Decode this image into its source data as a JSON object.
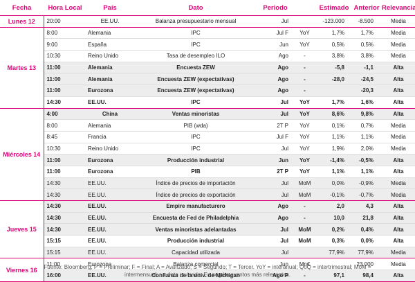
{
  "headers": {
    "fecha": "Fecha",
    "hora": "Hora Local",
    "pais": "País",
    "dato": "Dato",
    "periodo": "Periodo",
    "estimado": "Estimado",
    "anterior": "Anterior",
    "relevancia": "Relevancia"
  },
  "days": [
    {
      "label": "Lunes 12",
      "rows": [
        {
          "hora": "20:00",
          "pais": "EE.UU.",
          "dato": "Balanza presupuestario mensual",
          "periodo": "Jul",
          "unidad": "",
          "estimado": "-123.000",
          "anterior": "-8.500",
          "relevancia": "Media",
          "bold": false,
          "shade": false,
          "center_pais": true
        }
      ]
    },
    {
      "label": "Martes 13",
      "rows": [
        {
          "hora": "8:00",
          "pais": "Alemania",
          "dato": "IPC",
          "periodo": "Jul F",
          "unidad": "YoY",
          "estimado": "1,7%",
          "anterior": "1,7%",
          "relevancia": "Media",
          "bold": false,
          "shade": false
        },
        {
          "hora": "9:00",
          "pais": "España",
          "dato": "IPC",
          "periodo": "Jun",
          "unidad": "YoY",
          "estimado": "0,5%",
          "anterior": "0,5%",
          "relevancia": "Media",
          "bold": false,
          "shade": false
        },
        {
          "hora": "10:30",
          "pais": "Reino Unido",
          "dato": "Tasa de desempleo ILO",
          "periodo": "Ago",
          "unidad": "-",
          "estimado": "3,8%",
          "anterior": "3,8%",
          "relevancia": "Media",
          "bold": false,
          "shade": false
        },
        {
          "hora": "11:00",
          "pais": "Alemania",
          "dato": "Encuesta ZEW",
          "periodo": "Ago",
          "unidad": "-",
          "estimado": "-5,8",
          "anterior": "-1,1",
          "relevancia": "Alta",
          "bold": true,
          "shade": true
        },
        {
          "hora": "11:00",
          "pais": "Alemania",
          "dato": "Encuesta ZEW  (expectativas)",
          "periodo": "Ago",
          "unidad": "-",
          "estimado": "-28,0",
          "anterior": "-24,5",
          "relevancia": "Alta",
          "bold": true,
          "shade": true
        },
        {
          "hora": "11:00",
          "pais": "Eurozona",
          "dato": "Encuesta ZEW  (expectativas)",
          "periodo": "Ago",
          "unidad": "-",
          "estimado": "",
          "anterior": "-20,3",
          "relevancia": "Alta",
          "bold": true,
          "shade": true
        },
        {
          "hora": "14:30",
          "pais": "EE.UU.",
          "dato": "IPC",
          "periodo": "Jul",
          "unidad": "YoY",
          "estimado": "1,7%",
          "anterior": "1,6%",
          "relevancia": "Alta",
          "bold": true,
          "shade": false
        }
      ]
    },
    {
      "label": "Miércoles 14",
      "rows": [
        {
          "hora": "4:00",
          "pais": "China",
          "dato": "Ventas minoristas",
          "periodo": "Jul",
          "unidad": "YoY",
          "estimado": "8,6%",
          "anterior": "9,8%",
          "relevancia": "Alta",
          "bold": true,
          "shade": true,
          "center_pais": true
        },
        {
          "hora": "8:00",
          "pais": "Alemania",
          "dato": "PIB (wda)",
          "periodo": "2T P",
          "unidad": "YoY",
          "estimado": "0,1%",
          "anterior": "0,7%",
          "relevancia": "Media",
          "bold": false,
          "shade": false
        },
        {
          "hora": "8:45",
          "pais": "Francia",
          "dato": "IPC",
          "periodo": "Jul F",
          "unidad": "YoY",
          "estimado": "1,1%",
          "anterior": "1,1%",
          "relevancia": "Media",
          "bold": false,
          "shade": false
        },
        {
          "hora": "10:30",
          "pais": "Reino Unido",
          "dato": "IPC",
          "periodo": "Jul",
          "unidad": "YoY",
          "estimado": "1,9%",
          "anterior": "2,0%",
          "relevancia": "Media",
          "bold": false,
          "shade": false
        },
        {
          "hora": "11:00",
          "pais": "Eurozona",
          "dato": "Producción industrial",
          "periodo": "Jun",
          "unidad": "YoY",
          "estimado": "-1,4%",
          "anterior": "-0,5%",
          "relevancia": "Alta",
          "bold": true,
          "shade": true
        },
        {
          "hora": "11:00",
          "pais": "Eurozona",
          "dato": "PIB",
          "periodo": "2T P",
          "unidad": "YoY",
          "estimado": "1,1%",
          "anterior": "1,1%",
          "relevancia": "Alta",
          "bold": true,
          "shade": false
        },
        {
          "hora": "14:30",
          "pais": "EE.UU.",
          "dato": "Índice de precios de importación",
          "periodo": "Jul",
          "unidad": "MoM",
          "estimado": "0,0%",
          "anterior": "-0,9%",
          "relevancia": "Media",
          "bold": false,
          "shade": true
        },
        {
          "hora": "14:30",
          "pais": "EE.UU.",
          "dato": "Índice de precios de exportación",
          "periodo": "Jul",
          "unidad": "MoM",
          "estimado": "-0,1%",
          "anterior": "-0,7%",
          "relevancia": "Media",
          "bold": false,
          "shade": true
        }
      ]
    },
    {
      "label": "Jueves 15",
      "rows": [
        {
          "hora": "14:30",
          "pais": "EE.UU.",
          "dato": "Empire manufacturero",
          "periodo": "Ago",
          "unidad": "-",
          "estimado": "2,0",
          "anterior": "4,3",
          "relevancia": "Alta",
          "bold": true,
          "shade": true
        },
        {
          "hora": "14:30",
          "pais": "EE.UU.",
          "dato": "Encuesta de Fed de Philadelphia",
          "periodo": "Ago",
          "unidad": "-",
          "estimado": "10,0",
          "anterior": "21,8",
          "relevancia": "Alta",
          "bold": true,
          "shade": true
        },
        {
          "hora": "14:30",
          "pais": "EE.UU.",
          "dato": "Ventas minoristas adelantadas",
          "periodo": "Jul",
          "unidad": "MoM",
          "estimado": "0,2%",
          "anterior": "0,4%",
          "relevancia": "Alta",
          "bold": true,
          "shade": true
        },
        {
          "hora": "15:15",
          "pais": "EE.UU.",
          "dato": "Producción industrial",
          "periodo": "Jul",
          "unidad": "MoM",
          "estimado": "0,3%",
          "anterior": "0,0%",
          "relevancia": "Alta",
          "bold": true,
          "shade": false
        },
        {
          "hora": "15:15",
          "pais": "EE.UU.",
          "dato": "Capacidad utilizada",
          "periodo": "Jul",
          "unidad": "",
          "estimado": "77,9%",
          "anterior": "77,9%",
          "relevancia": "Media",
          "bold": false,
          "shade": true
        }
      ]
    },
    {
      "label": "Viernes 16",
      "rows": [
        {
          "hora": "11:00",
          "pais": "Eurozona",
          "dato": "Balanza comercial",
          "periodo": "Jun",
          "unidad": "Mn€",
          "estimado": "",
          "anterior": "23.000",
          "relevancia": "Media",
          "bold": false,
          "shade": false
        },
        {
          "hora": "16:00",
          "pais": "EE.UU.",
          "dato": "Confianza de la univ. de Michigan",
          "periodo": "Ago P",
          "unidad": "-",
          "estimado": "97,1",
          "anterior": "98,4",
          "relevancia": "Alta",
          "bold": true,
          "shade": true
        }
      ]
    }
  ],
  "footnote": {
    "line1": "Fuente: Bloomberg; P = Preliminar; F = Final; A = Avanzado; S = Segundo; T = Tercer.  YoY = interanual; QoQ = intertrimestral; MoM =",
    "line2": "intermensual; r = dato revisado. En negrita eventos más relevantes."
  },
  "colors": {
    "accent": "#e0007a",
    "shade": "#ededed"
  }
}
